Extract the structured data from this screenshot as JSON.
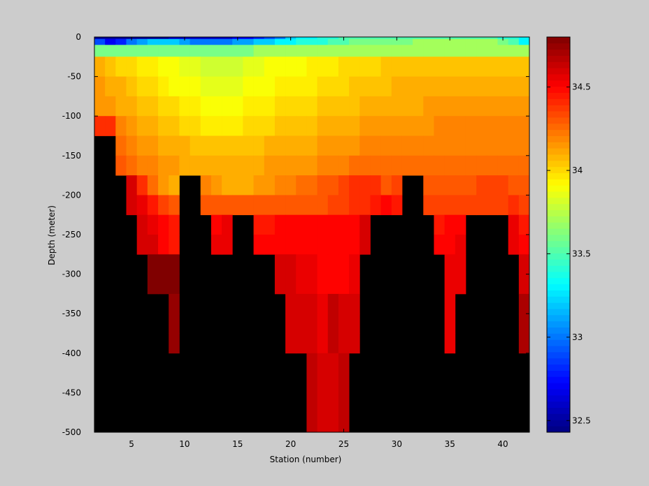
{
  "chart_data": {
    "type": "heatmap",
    "title": "",
    "xlabel": "Station (number)",
    "ylabel": "Depth (meter)",
    "xlim": [
      1.5,
      42.5
    ],
    "ylim": [
      -500,
      0
    ],
    "x_ticks": [
      5,
      10,
      15,
      20,
      25,
      30,
      35,
      40
    ],
    "y_ticks": [
      0,
      -50,
      -100,
      -150,
      -200,
      -250,
      -300,
      -350,
      -400,
      -450,
      -500
    ],
    "stations": [
      2,
      3,
      4,
      5,
      6,
      7,
      8,
      9,
      10,
      11,
      12,
      13,
      14,
      15,
      16,
      17,
      18,
      19,
      20,
      21,
      22,
      23,
      24,
      25,
      26,
      27,
      28,
      29,
      30,
      31,
      32,
      33,
      34,
      35,
      36,
      37,
      38,
      39,
      40,
      41,
      42
    ],
    "surface_layer_depths": [
      0,
      -2.5,
      -10,
      -25
    ],
    "surface_layers": [
      [
        32.5,
        32.5,
        32.5,
        32.5,
        32.5,
        32.5,
        32.5,
        32.6,
        32.6,
        32.6,
        32.6,
        32.6,
        32.6,
        32.7,
        32.7,
        32.8,
        32.9,
        33.0,
        33.2,
        33.3,
        33.3,
        33.4,
        33.4,
        33.5,
        33.5,
        33.5,
        33.5,
        33.5,
        33.5,
        33.5,
        33.5,
        33.5,
        33.5,
        33.5,
        33.5,
        33.5,
        33.5,
        33.5,
        33.4,
        33.4,
        33.3
      ],
      [
        32.9,
        32.7,
        32.8,
        33.0,
        33.1,
        33.2,
        33.2,
        33.2,
        33.1,
        33.0,
        33.0,
        33.0,
        33.0,
        33.1,
        33.1,
        33.2,
        33.2,
        33.3,
        33.3,
        33.4,
        33.4,
        33.4,
        33.5,
        33.5,
        33.6,
        33.6,
        33.6,
        33.6,
        33.6,
        33.6,
        33.7,
        33.7,
        33.7,
        33.7,
        33.7,
        33.7,
        33.7,
        33.7,
        33.6,
        33.5,
        33.3
      ],
      [
        33.6,
        33.6,
        33.6,
        33.6,
        33.6,
        33.6,
        33.6,
        33.6,
        33.6,
        33.6,
        33.6,
        33.6,
        33.6,
        33.6,
        33.6,
        33.7,
        33.7,
        33.7,
        33.7,
        33.7,
        33.7,
        33.7,
        33.7,
        33.7,
        33.7,
        33.7,
        33.7,
        33.7,
        33.7,
        33.7,
        33.7,
        33.7,
        33.7,
        33.7,
        33.7,
        33.7,
        33.7,
        33.7,
        33.7,
        33.7,
        33.7
      ]
    ],
    "depth_bins": [
      -25,
      -50,
      -75,
      -100,
      -125,
      -150,
      -175,
      -200,
      -225,
      -250,
      -275,
      -300,
      -325,
      -350,
      -375,
      -400,
      -425,
      -450,
      -475,
      -500
    ],
    "values": [
      [
        34.05,
        34.0,
        33.95,
        33.95,
        33.9,
        33.9,
        33.85,
        33.85,
        33.8,
        33.8,
        33.75,
        33.75,
        33.75,
        33.75,
        33.8,
        33.8,
        33.85,
        33.85,
        33.9,
        33.9,
        33.9,
        33.9,
        33.95,
        33.95,
        33.95,
        33.95,
        34.0,
        34.0,
        34.0,
        34.0,
        34.0,
        34.0,
        34.0,
        34.0,
        34.0,
        34.0,
        34.0,
        34.0,
        34.0,
        34.0,
        34.0
      ],
      [
        34.1,
        34.05,
        34.0,
        34.0,
        33.95,
        33.95,
        33.9,
        33.9,
        33.85,
        33.85,
        33.8,
        33.8,
        33.8,
        33.8,
        33.85,
        33.85,
        33.9,
        33.9,
        33.9,
        33.9,
        33.95,
        33.95,
        33.95,
        34.0,
        34.0,
        34.0,
        34.0,
        34.05,
        34.05,
        34.05,
        34.05,
        34.05,
        34.05,
        34.05,
        34.05,
        34.05,
        34.05,
        34.05,
        34.05,
        34.05,
        34.05
      ],
      [
        34.15,
        34.1,
        34.1,
        34.05,
        34.0,
        34.0,
        33.95,
        33.9,
        33.9,
        33.9,
        33.85,
        33.85,
        33.85,
        33.85,
        33.9,
        33.9,
        33.9,
        33.95,
        33.95,
        33.95,
        33.95,
        34.0,
        34.0,
        34.0,
        34.05,
        34.05,
        34.05,
        34.05,
        34.1,
        34.1,
        34.1,
        34.1,
        34.1,
        34.1,
        34.1,
        34.1,
        34.1,
        34.1,
        34.1,
        34.1,
        34.1
      ],
      [
        34.15,
        34.15,
        34.1,
        34.1,
        34.05,
        34.05,
        34.0,
        34.0,
        33.95,
        33.95,
        33.9,
        33.9,
        33.9,
        33.9,
        33.95,
        33.95,
        33.95,
        34.0,
        34.0,
        34.0,
        34.0,
        34.05,
        34.05,
        34.05,
        34.05,
        34.1,
        34.1,
        34.1,
        34.1,
        34.1,
        34.1,
        34.15,
        34.15,
        34.15,
        34.15,
        34.15,
        34.15,
        34.15,
        34.15,
        34.15,
        34.15
      ],
      [
        34.4,
        34.4,
        34.2,
        34.15,
        34.1,
        34.1,
        34.05,
        34.05,
        34.0,
        34.0,
        33.95,
        33.95,
        33.95,
        33.95,
        34.0,
        34.0,
        34.0,
        34.05,
        34.05,
        34.05,
        34.05,
        34.1,
        34.1,
        34.1,
        34.1,
        34.15,
        34.15,
        34.15,
        34.15,
        34.15,
        34.15,
        34.15,
        34.2,
        34.2,
        34.2,
        34.2,
        34.2,
        34.2,
        34.2,
        34.2,
        34.2
      ],
      [
        null,
        null,
        34.25,
        34.2,
        34.15,
        34.15,
        34.1,
        34.1,
        34.1,
        34.05,
        34.05,
        34.05,
        34.05,
        34.05,
        34.05,
        34.05,
        34.1,
        34.1,
        34.1,
        34.1,
        34.1,
        34.15,
        34.15,
        34.15,
        34.15,
        34.2,
        34.2,
        34.2,
        34.2,
        34.2,
        34.2,
        34.2,
        34.2,
        34.2,
        34.2,
        34.2,
        34.2,
        34.2,
        34.2,
        34.2,
        34.2
      ],
      [
        null,
        null,
        34.3,
        34.25,
        34.2,
        34.2,
        34.15,
        34.15,
        34.1,
        34.1,
        34.1,
        34.1,
        34.1,
        34.1,
        34.1,
        34.1,
        34.15,
        34.15,
        34.15,
        34.15,
        34.15,
        34.2,
        34.2,
        34.2,
        34.25,
        34.25,
        34.25,
        34.25,
        34.25,
        34.25,
        34.25,
        34.25,
        34.25,
        34.25,
        34.25,
        34.25,
        34.25,
        34.25,
        34.25,
        34.25,
        34.25
      ],
      [
        null,
        null,
        null,
        34.6,
        34.4,
        34.25,
        34.15,
        34.1,
        null,
        null,
        34.2,
        34.15,
        34.1,
        34.1,
        34.1,
        34.15,
        34.15,
        34.2,
        34.2,
        34.25,
        34.25,
        34.3,
        34.3,
        34.35,
        34.4,
        34.4,
        34.4,
        34.3,
        34.35,
        null,
        null,
        34.3,
        34.3,
        34.3,
        34.3,
        34.3,
        34.35,
        34.35,
        34.35,
        34.3,
        34.3
      ],
      [
        null,
        null,
        null,
        34.6,
        34.55,
        34.45,
        34.35,
        34.3,
        null,
        null,
        34.3,
        34.3,
        34.3,
        34.3,
        34.3,
        34.3,
        34.3,
        34.3,
        34.3,
        34.3,
        34.3,
        34.3,
        34.35,
        34.35,
        34.4,
        34.4,
        34.45,
        34.5,
        34.45,
        null,
        null,
        34.35,
        34.35,
        34.35,
        34.35,
        34.35,
        34.35,
        34.35,
        34.35,
        34.4,
        34.35
      ],
      [
        null,
        null,
        null,
        null,
        34.6,
        34.55,
        34.5,
        34.45,
        null,
        null,
        null,
        34.5,
        34.55,
        null,
        null,
        34.45,
        34.45,
        34.5,
        34.5,
        34.5,
        34.5,
        34.5,
        34.5,
        34.5,
        34.5,
        34.6,
        null,
        null,
        null,
        null,
        null,
        null,
        34.45,
        34.5,
        34.5,
        null,
        null,
        null,
        null,
        34.55,
        34.45
      ],
      [
        null,
        null,
        null,
        null,
        34.6,
        34.6,
        34.5,
        34.45,
        null,
        null,
        null,
        34.55,
        34.55,
        null,
        null,
        34.5,
        34.5,
        34.5,
        34.5,
        34.5,
        34.5,
        34.5,
        34.5,
        34.5,
        34.5,
        34.6,
        null,
        null,
        null,
        null,
        null,
        null,
        34.5,
        34.5,
        34.55,
        null,
        null,
        null,
        null,
        34.55,
        34.5
      ],
      [
        null,
        null,
        null,
        null,
        null,
        34.8,
        34.8,
        34.8,
        null,
        null,
        null,
        null,
        null,
        null,
        null,
        null,
        null,
        34.6,
        34.6,
        34.55,
        34.55,
        34.5,
        34.5,
        34.5,
        34.55,
        null,
        null,
        null,
        null,
        null,
        null,
        null,
        null,
        34.55,
        34.55,
        null,
        null,
        null,
        null,
        null,
        34.6
      ],
      [
        null,
        null,
        null,
        null,
        null,
        34.8,
        34.8,
        34.8,
        null,
        null,
        null,
        null,
        null,
        null,
        null,
        null,
        null,
        34.6,
        34.6,
        34.55,
        34.55,
        34.5,
        34.5,
        34.5,
        34.55,
        null,
        null,
        null,
        null,
        null,
        null,
        null,
        null,
        34.55,
        34.55,
        null,
        null,
        null,
        null,
        null,
        34.6
      ],
      [
        null,
        null,
        null,
        null,
        null,
        null,
        null,
        34.75,
        null,
        null,
        null,
        null,
        null,
        null,
        null,
        null,
        null,
        null,
        34.6,
        34.6,
        34.6,
        34.55,
        34.65,
        34.6,
        34.6,
        null,
        null,
        null,
        null,
        null,
        null,
        null,
        null,
        34.55,
        null,
        null,
        null,
        null,
        null,
        null,
        34.7
      ],
      [
        null,
        null,
        null,
        null,
        null,
        null,
        null,
        34.75,
        null,
        null,
        null,
        null,
        null,
        null,
        null,
        null,
        null,
        null,
        34.6,
        34.6,
        34.6,
        34.55,
        34.65,
        34.6,
        34.6,
        null,
        null,
        null,
        null,
        null,
        null,
        null,
        null,
        34.55,
        null,
        null,
        null,
        null,
        null,
        null,
        34.7
      ],
      [
        null,
        null,
        null,
        null,
        null,
        null,
        null,
        34.75,
        null,
        null,
        null,
        null,
        null,
        null,
        null,
        null,
        null,
        null,
        34.6,
        34.6,
        34.6,
        34.55,
        34.65,
        34.6,
        34.6,
        null,
        null,
        null,
        null,
        null,
        null,
        null,
        null,
        34.55,
        null,
        null,
        null,
        null,
        null,
        null,
        34.7
      ],
      [
        null,
        null,
        null,
        null,
        null,
        null,
        null,
        null,
        null,
        null,
        null,
        null,
        null,
        null,
        null,
        null,
        null,
        null,
        null,
        null,
        34.65,
        34.6,
        34.6,
        34.65,
        null,
        null,
        null,
        null,
        null,
        null,
        null,
        null,
        null,
        null,
        null,
        null,
        null,
        null,
        null,
        null,
        null
      ],
      [
        null,
        null,
        null,
        null,
        null,
        null,
        null,
        null,
        null,
        null,
        null,
        null,
        null,
        null,
        null,
        null,
        null,
        null,
        null,
        null,
        34.65,
        34.6,
        34.6,
        34.65,
        null,
        null,
        null,
        null,
        null,
        null,
        null,
        null,
        null,
        null,
        null,
        null,
        null,
        null,
        null,
        null,
        null
      ],
      [
        null,
        null,
        null,
        null,
        null,
        null,
        null,
        null,
        null,
        null,
        null,
        null,
        null,
        null,
        null,
        null,
        null,
        null,
        null,
        null,
        34.65,
        34.6,
        34.6,
        34.65,
        null,
        null,
        null,
        null,
        null,
        null,
        null,
        null,
        null,
        null,
        null,
        null,
        null,
        null,
        null,
        null,
        null
      ],
      [
        null,
        null,
        null,
        null,
        null,
        null,
        null,
        null,
        null,
        null,
        null,
        null,
        null,
        null,
        null,
        null,
        null,
        null,
        null,
        null,
        34.65,
        34.6,
        34.6,
        34.65,
        null,
        null,
        null,
        null,
        null,
        null,
        null,
        null,
        null,
        null,
        null,
        null,
        null,
        null,
        null,
        null,
        null
      ]
    ],
    "missing_color": "#000000",
    "colormap": "jet",
    "color_range": [
      32.43,
      34.8
    ],
    "colorbar_ticks": [
      32.5,
      33,
      33.5,
      34,
      34.5
    ],
    "colorbar_position": "right",
    "grid": false
  }
}
